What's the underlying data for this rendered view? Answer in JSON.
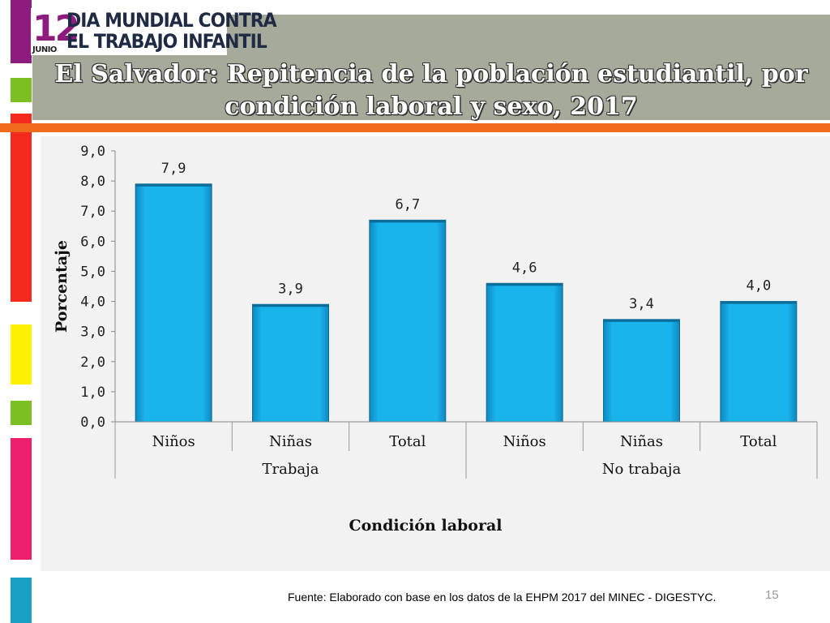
{
  "logo": {
    "day": "12",
    "month": "JUNIO",
    "line1": "DIA MUNDIAL CONTRA",
    "line2": "EL TRABAJO INFANTIL"
  },
  "slide_title": "El Salvador:  Repitencia de la población estudiantil, por condición laboral y sexo, 2017",
  "chart_data": {
    "type": "bar",
    "categories": [
      "Niños",
      "Niñas",
      "Total",
      "Niños",
      "Niñas",
      "Total"
    ],
    "groups": [
      {
        "label": "Trabaja",
        "count": 3
      },
      {
        "label": "No trabaja",
        "count": 3
      }
    ],
    "values": [
      7.9,
      3.9,
      6.7,
      4.6,
      3.4,
      4.0
    ],
    "value_labels": [
      "7,9",
      "3,9",
      "6,7",
      "4,6",
      "3,4",
      "4,0"
    ],
    "ylabel": "Porcentaje",
    "xlabel": "Condición laboral",
    "ylim": [
      0,
      9
    ],
    "yticks": [
      "0,0",
      "1,0",
      "2,0",
      "3,0",
      "4,0",
      "5,0",
      "6,0",
      "7,0",
      "8,0",
      "9,0"
    ],
    "bar_color": "#1ab4ec",
    "grid": false
  },
  "source": "Fuente: Elaborado con base en los datos de la EHPM  2017 del MINEC - DIGESTYC.",
  "page_number": "15"
}
